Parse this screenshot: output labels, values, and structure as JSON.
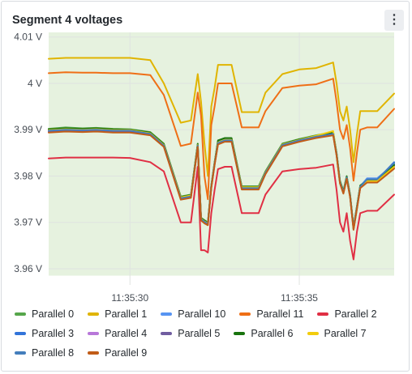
{
  "panel": {
    "title": "Segment 4 voltages",
    "menu_icon": "kebab-menu-icon"
  },
  "chart_data": {
    "type": "line",
    "title": "Segment 4 voltages",
    "xlabel": "",
    "ylabel": "",
    "y_unit": "V",
    "ylim": [
      3.9565,
      4.011
    ],
    "yticks": [
      4.01,
      4.0,
      3.99,
      3.98,
      3.97,
      3.96
    ],
    "ytick_labels": [
      "4.01 V",
      "4 V",
      "3.99 V",
      "3.98 V",
      "3.97 V",
      "3.96 V"
    ],
    "xlim": [
      "11:35:27.6",
      "11:35:37.8"
    ],
    "xticks": [
      "11:35:30",
      "11:35:35"
    ],
    "grid": true,
    "background_band": {
      "from": 3.9585,
      "to": 4.0115,
      "color": "#e6f2df"
    },
    "legend_position": "bottom",
    "x": [
      "11:35:27.6",
      "11:35:28.1",
      "11:35:28.6",
      "11:35:29.0",
      "11:35:29.5",
      "11:35:30.0",
      "11:35:30.6",
      "11:35:31.0",
      "11:35:31.5",
      "11:35:31.8",
      "11:35:32.0",
      "11:35:32.1",
      "11:35:32.2",
      "11:35:32.3",
      "11:35:32.4",
      "11:35:32.5",
      "11:35:32.6",
      "11:35:32.8",
      "11:35:33.0",
      "11:35:33.3",
      "11:35:33.6",
      "11:35:33.8",
      "11:35:34.0",
      "11:35:34.5",
      "11:35:35.0",
      "11:35:35.5",
      "11:35:36.0",
      "11:35:36.1",
      "11:35:36.2",
      "11:35:36.3",
      "11:35:36.4",
      "11:35:36.5",
      "11:35:36.6",
      "11:35:36.7",
      "11:35:36.8",
      "11:35:37.0",
      "11:35:37.3",
      "11:35:37.8"
    ],
    "series": [
      {
        "name": "Parallel 0",
        "color": "#56a64b",
        "values": [
          3.9902,
          3.9905,
          3.9903,
          3.9904,
          3.9902,
          3.9901,
          3.9895,
          3.987,
          3.9756,
          3.976,
          3.987,
          3.971,
          3.9705,
          3.97,
          3.978,
          3.983,
          3.9875,
          3.988,
          3.988,
          3.9778,
          3.9778,
          3.9778,
          3.981,
          3.987,
          3.988,
          3.9888,
          3.9895,
          3.985,
          3.979,
          3.9768,
          3.98,
          3.976,
          3.969,
          3.9735,
          3.978,
          3.979,
          3.979,
          3.982
        ]
      },
      {
        "name": "Parallel 1",
        "color": "#e0b400",
        "values": [
          4.0053,
          4.0055,
          4.0055,
          4.0055,
          4.0055,
          4.0055,
          4.005,
          4.0,
          3.9915,
          3.992,
          4.002,
          3.996,
          3.987,
          3.98,
          3.995,
          3.999,
          4.004,
          4.004,
          4.004,
          3.9938,
          3.9938,
          3.9938,
          3.998,
          4.002,
          4.003,
          4.0033,
          4.0045,
          4.0,
          3.994,
          3.992,
          3.995,
          3.99,
          3.983,
          3.989,
          3.994,
          3.994,
          3.994,
          3.9978
        ]
      },
      {
        "name": "Parallel 10",
        "color": "#5794f2",
        "values": [
          3.99,
          3.9902,
          3.9901,
          3.9902,
          3.99,
          3.99,
          3.9893,
          3.9868,
          3.9753,
          3.9757,
          3.9868,
          3.9708,
          3.9703,
          3.9698,
          3.9778,
          3.9828,
          3.9873,
          3.9878,
          3.9878,
          3.9775,
          3.9775,
          3.9775,
          3.9808,
          3.9868,
          3.9878,
          3.9886,
          3.9893,
          3.9848,
          3.9788,
          3.9766,
          3.9798,
          3.9758,
          3.9688,
          3.9733,
          3.9778,
          3.9795,
          3.9795,
          3.9826
        ]
      },
      {
        "name": "Parallel 11",
        "color": "#ef6f16",
        "values": [
          4.0022,
          4.0024,
          4.0023,
          4.0023,
          4.0022,
          4.0022,
          4.0018,
          3.9975,
          3.9865,
          3.987,
          3.998,
          3.993,
          3.98,
          3.975,
          3.991,
          3.995,
          4.0,
          4.0,
          4.0,
          3.9905,
          3.9905,
          3.9905,
          3.994,
          3.999,
          3.9995,
          3.9998,
          4.001,
          3.996,
          3.99,
          3.988,
          3.991,
          3.986,
          3.979,
          3.985,
          3.99,
          3.9905,
          3.9905,
          3.9945
        ]
      },
      {
        "name": "Parallel 2",
        "color": "#e02f44",
        "values": [
          3.9838,
          3.984,
          3.984,
          3.984,
          3.984,
          3.9839,
          3.983,
          3.981,
          3.97,
          3.97,
          3.982,
          3.964,
          3.964,
          3.9635,
          3.972,
          3.977,
          3.9815,
          3.982,
          3.982,
          3.972,
          3.972,
          3.972,
          3.976,
          3.981,
          3.9815,
          3.9818,
          3.9825,
          3.977,
          3.97,
          3.968,
          3.972,
          3.966,
          3.962,
          3.968,
          3.972,
          3.9725,
          3.9725,
          3.976
        ]
      },
      {
        "name": "Parallel 3",
        "color": "#3274d9",
        "values": [
          3.9896,
          3.9898,
          3.9897,
          3.9898,
          3.9896,
          3.9896,
          3.989,
          3.9865,
          3.9751,
          3.9755,
          3.9865,
          3.9706,
          3.97,
          3.9696,
          3.9776,
          3.9826,
          3.987,
          3.9876,
          3.9876,
          3.9773,
          3.9773,
          3.9773,
          3.9806,
          3.9866,
          3.9876,
          3.9884,
          3.989,
          3.9846,
          3.9786,
          3.9764,
          3.9796,
          3.9756,
          3.9686,
          3.9731,
          3.9776,
          3.9792,
          3.9792,
          3.983
        ]
      },
      {
        "name": "Parallel 4",
        "color": "#b877d9",
        "values": [
          3.9897,
          3.9899,
          3.9898,
          3.9899,
          3.9897,
          3.9897,
          3.9891,
          3.9866,
          3.9752,
          3.9756,
          3.9866,
          3.9707,
          3.9701,
          3.9697,
          3.9777,
          3.9827,
          3.9871,
          3.9877,
          3.9877,
          3.9774,
          3.9774,
          3.9774,
          3.9807,
          3.9867,
          3.9877,
          3.9885,
          3.9891,
          3.9847,
          3.9787,
          3.9765,
          3.9797,
          3.9757,
          3.9687,
          3.9732,
          3.9777,
          3.9788,
          3.9788,
          3.9818
        ]
      },
      {
        "name": "Parallel 5",
        "color": "#705da0",
        "values": [
          3.9895,
          3.9897,
          3.9896,
          3.9897,
          3.9895,
          3.9895,
          3.9889,
          3.9864,
          3.975,
          3.9754,
          3.9864,
          3.9705,
          3.9699,
          3.9695,
          3.9775,
          3.9825,
          3.9869,
          3.9875,
          3.9875,
          3.9772,
          3.9772,
          3.9772,
          3.9805,
          3.9865,
          3.9875,
          3.9883,
          3.9889,
          3.9845,
          3.9785,
          3.9763,
          3.9795,
          3.9755,
          3.9685,
          3.973,
          3.9775,
          3.979,
          3.979,
          3.9822
        ]
      },
      {
        "name": "Parallel 6",
        "color": "#19730e",
        "values": [
          3.9901,
          3.9903,
          3.9902,
          3.9903,
          3.9901,
          3.99,
          3.9894,
          3.9869,
          3.9755,
          3.9759,
          3.9869,
          3.9709,
          3.9704,
          3.9699,
          3.9779,
          3.9829,
          3.9877,
          3.9882,
          3.9882,
          3.9777,
          3.9777,
          3.9777,
          3.9809,
          3.9869,
          3.9879,
          3.9887,
          3.9894,
          3.9849,
          3.9789,
          3.9767,
          3.9799,
          3.9759,
          3.9689,
          3.9734,
          3.9779,
          3.9791,
          3.9791,
          3.9824
        ]
      },
      {
        "name": "Parallel 7",
        "color": "#f2cc0c",
        "values": [
          3.9899,
          3.9901,
          3.99,
          3.9901,
          3.9899,
          3.9899,
          3.9892,
          3.9867,
          3.9754,
          3.9758,
          3.9867,
          3.9708,
          3.9702,
          3.9698,
          3.9778,
          3.9828,
          3.9872,
          3.9878,
          3.9878,
          3.9776,
          3.9776,
          3.9776,
          3.9808,
          3.9868,
          3.9878,
          3.9887,
          3.9897,
          3.9847,
          3.9787,
          3.9765,
          3.9797,
          3.9757,
          3.9687,
          3.9732,
          3.9777,
          3.9789,
          3.9789,
          3.982
        ]
      },
      {
        "name": "Parallel 8",
        "color": "#447ebc",
        "values": [
          3.9898,
          3.99,
          3.9899,
          3.99,
          3.9898,
          3.9898,
          3.9891,
          3.9866,
          3.9752,
          3.9756,
          3.9866,
          3.9707,
          3.9701,
          3.9697,
          3.9777,
          3.9827,
          3.9871,
          3.9877,
          3.9877,
          3.9774,
          3.9774,
          3.9774,
          3.9807,
          3.9867,
          3.9877,
          3.9885,
          3.9891,
          3.9847,
          3.9787,
          3.9765,
          3.9797,
          3.9757,
          3.9687,
          3.9732,
          3.9777,
          3.9793,
          3.9793,
          3.9828
        ]
      },
      {
        "name": "Parallel 9",
        "color": "#c15c17",
        "values": [
          3.9894,
          3.9896,
          3.9895,
          3.9896,
          3.9894,
          3.9894,
          3.9888,
          3.9863,
          3.9749,
          3.9753,
          3.9863,
          3.9704,
          3.9698,
          3.9694,
          3.9774,
          3.9824,
          3.9868,
          3.9874,
          3.9874,
          3.9771,
          3.9771,
          3.9771,
          3.9804,
          3.9864,
          3.9874,
          3.9882,
          3.9888,
          3.9844,
          3.9784,
          3.9762,
          3.9794,
          3.9754,
          3.9684,
          3.9729,
          3.9774,
          3.9786,
          3.9786,
          3.9816
        ]
      }
    ]
  },
  "legend_rows": [
    [
      "Parallel 0",
      "Parallel 1",
      "Parallel 10",
      "Parallel 11",
      "Parallel 2"
    ],
    [
      "Parallel 3",
      "Parallel 4",
      "Parallel 5",
      "Parallel 6",
      "Parallel 7"
    ],
    [
      "Parallel 8",
      "Parallel 9"
    ]
  ]
}
